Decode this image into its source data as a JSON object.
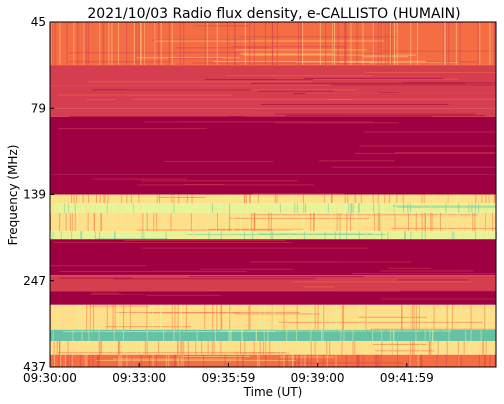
{
  "chart_data": {
    "type": "heatmap",
    "title": "2021/10/03  Radio flux density, e-CALLISTO (HUMAIN)",
    "xlabel": "Time (UT)",
    "ylabel": "Frequency (MHz)",
    "x_ticks": [
      "09:30:00",
      "09:33:00",
      "09:35:59",
      "09:39:00",
      "09:41:59"
    ],
    "y_ticks": [
      "45",
      "79",
      "139",
      "247",
      "437"
    ],
    "x_range": [
      "09:30:00",
      "09:45:00"
    ],
    "y_range": [
      45,
      437
    ],
    "y_axis_direction": "increasing downward",
    "colormap": "Spectral",
    "colors": {
      "low": "#9e0142",
      "mid_low": "#d53e4f",
      "mid": "#f46d43",
      "mid_high": "#fee08b",
      "high": "#e6f598",
      "peak": "#66c2a5"
    },
    "frequency_bands": [
      {
        "from": 45,
        "to": 62,
        "level": "mid"
      },
      {
        "from": 62,
        "to": 70,
        "level": "mid_low"
      },
      {
        "from": 70,
        "to": 79,
        "level": "mid_low"
      },
      {
        "from": 79,
        "to": 85,
        "level": "mid_low"
      },
      {
        "from": 85,
        "to": 125,
        "level": "low"
      },
      {
        "from": 125,
        "to": 139,
        "level": "low"
      },
      {
        "from": 139,
        "to": 150,
        "level": "mid_high"
      },
      {
        "from": 150,
        "to": 162,
        "level": "high"
      },
      {
        "from": 162,
        "to": 185,
        "level": "mid_high"
      },
      {
        "from": 185,
        "to": 195,
        "level": "high"
      },
      {
        "from": 195,
        "to": 240,
        "level": "low"
      },
      {
        "from": 240,
        "to": 270,
        "level": "mid_low"
      },
      {
        "from": 270,
        "to": 300,
        "level": "low"
      },
      {
        "from": 300,
        "to": 355,
        "level": "mid_high"
      },
      {
        "from": 355,
        "to": 380,
        "level": "peak"
      },
      {
        "from": 380,
        "to": 410,
        "level": "mid_high"
      },
      {
        "from": 410,
        "to": 437,
        "level": "mid"
      }
    ]
  }
}
